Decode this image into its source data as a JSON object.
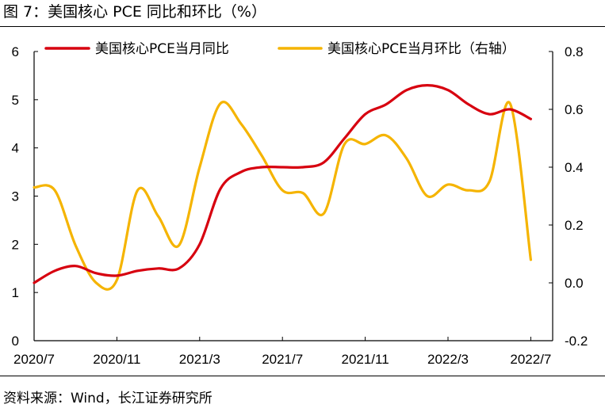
{
  "figure": {
    "title": "图 7：美国核心 PCE 同比和环比（%）",
    "source": "资料来源：Wind，长江证券研究所"
  },
  "chart_data": {
    "type": "line",
    "x_labels": [
      "2020/7",
      "2020/11",
      "2021/3",
      "2021/7",
      "2021/11",
      "2022/3",
      "2022/7"
    ],
    "left_axis": {
      "ylim": [
        0,
        6
      ],
      "ticks": [
        "0",
        "1",
        "2",
        "3",
        "4",
        "5",
        "6"
      ]
    },
    "right_axis": {
      "ylim": [
        -0.2,
        0.8
      ],
      "ticks": [
        "-0.2",
        "0.0",
        "0.2",
        "0.4",
        "0.6",
        "0.8"
      ]
    },
    "legend_position": "top",
    "grid": false,
    "series": [
      {
        "name": "美国核心PCE当月同比",
        "axis": "left",
        "color": "#d7000f",
        "x": [
          "2020/7",
          "2020/8",
          "2020/9",
          "2020/10",
          "2020/11",
          "2020/12",
          "2021/1",
          "2021/2",
          "2021/3",
          "2021/4",
          "2021/5",
          "2021/6",
          "2021/7",
          "2021/8",
          "2021/9",
          "2021/10",
          "2021/11",
          "2021/12",
          "2022/1",
          "2022/2",
          "2022/3",
          "2022/4",
          "2022/5",
          "2022/6",
          "2022/7"
        ],
        "values": [
          1.2,
          1.45,
          1.55,
          1.4,
          1.35,
          1.45,
          1.5,
          1.5,
          2.0,
          3.15,
          3.5,
          3.6,
          3.6,
          3.6,
          3.7,
          4.2,
          4.7,
          4.9,
          5.2,
          5.3,
          5.2,
          4.9,
          4.7,
          4.8,
          4.6
        ]
      },
      {
        "name": "美国核心PCE当月环比（右轴）",
        "axis": "right",
        "color": "#f5b400",
        "x": [
          "2020/7",
          "2020/8",
          "2020/9",
          "2020/10",
          "2020/11",
          "2020/12",
          "2021/1",
          "2021/2",
          "2021/3",
          "2021/4",
          "2021/5",
          "2021/6",
          "2021/7",
          "2021/8",
          "2021/9",
          "2021/10",
          "2021/11",
          "2021/12",
          "2022/1",
          "2022/2",
          "2022/3",
          "2022/4",
          "2022/5",
          "2022/6",
          "2022/7"
        ],
        "values": [
          0.33,
          0.32,
          0.13,
          0.0,
          0.01,
          0.32,
          0.23,
          0.13,
          0.4,
          0.62,
          0.55,
          0.44,
          0.32,
          0.31,
          0.24,
          0.48,
          0.48,
          0.51,
          0.43,
          0.3,
          0.34,
          0.32,
          0.35,
          0.62,
          0.08
        ]
      }
    ]
  }
}
